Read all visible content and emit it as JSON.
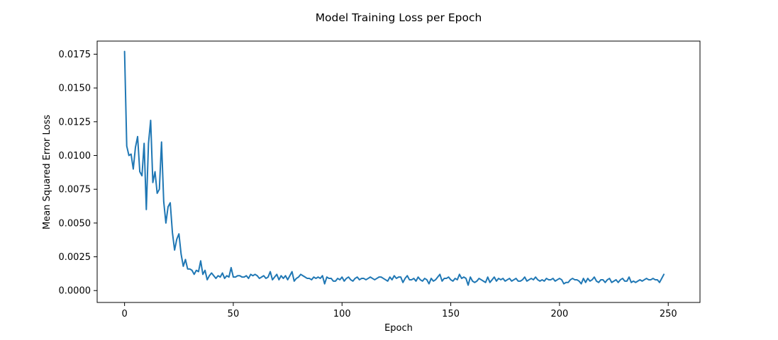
{
  "chart_data": {
    "type": "line",
    "title": "Model Training Loss per Epoch",
    "xlabel": "Epoch",
    "ylabel": "Mean Squared Error Loss",
    "xlim": [
      -12.6,
      264.6
    ],
    "ylim": [
      -0.00088,
      0.01847
    ],
    "x_ticks": [
      0,
      50,
      100,
      150,
      200,
      250
    ],
    "x_tick_labels": [
      "0",
      "50",
      "100",
      "150",
      "200",
      "250"
    ],
    "y_ticks": [
      0.0,
      0.0025,
      0.005,
      0.0075,
      0.01,
      0.0125,
      0.015,
      0.0175
    ],
    "y_tick_labels": [
      "0.0000",
      "0.0025",
      "0.0050",
      "0.0075",
      "0.0100",
      "0.0125",
      "0.0150",
      "0.0175"
    ],
    "grid": false,
    "line_color": "#1f77b4",
    "series": [
      {
        "x_start": 0,
        "values": [
          0.0177,
          0.0107,
          0.01,
          0.0101,
          0.009,
          0.0106,
          0.0114,
          0.0088,
          0.0085,
          0.0109,
          0.006,
          0.0109,
          0.0126,
          0.008,
          0.0088,
          0.0072,
          0.0075,
          0.011,
          0.0066,
          0.005,
          0.0062,
          0.0065,
          0.0043,
          0.003,
          0.0038,
          0.0042,
          0.0027,
          0.0018,
          0.0023,
          0.0016,
          0.0016,
          0.0015,
          0.0012,
          0.0015,
          0.0014,
          0.0022,
          0.0012,
          0.0015,
          0.0008,
          0.0011,
          0.0013,
          0.0011,
          0.0009,
          0.0011,
          0.001,
          0.0013,
          0.0009,
          0.0011,
          0.001,
          0.0017,
          0.001,
          0.001,
          0.0011,
          0.0011,
          0.001,
          0.001,
          0.0011,
          0.0009,
          0.0012,
          0.0011,
          0.0012,
          0.0011,
          0.0009,
          0.001,
          0.0011,
          0.0009,
          0.001,
          0.0014,
          0.0008,
          0.001,
          0.0012,
          0.0008,
          0.0011,
          0.0009,
          0.0011,
          0.0008,
          0.0011,
          0.0014,
          0.0007,
          0.0009,
          0.001,
          0.0012,
          0.0011,
          0.001,
          0.0009,
          0.0009,
          0.0008,
          0.001,
          0.0009,
          0.001,
          0.0009,
          0.0011,
          0.0005,
          0.001,
          0.0009,
          0.0009,
          0.0007,
          0.0007,
          0.0009,
          0.0008,
          0.001,
          0.0007,
          0.0009,
          0.001,
          0.0008,
          0.0007,
          0.0009,
          0.001,
          0.0008,
          0.0009,
          0.0009,
          0.0008,
          0.0009,
          0.001,
          0.0009,
          0.0008,
          0.0009,
          0.001,
          0.001,
          0.0009,
          0.0008,
          0.0007,
          0.001,
          0.0008,
          0.0011,
          0.0009,
          0.001,
          0.001,
          0.0006,
          0.0009,
          0.0011,
          0.0008,
          0.0008,
          0.0009,
          0.0007,
          0.001,
          0.0008,
          0.0007,
          0.0009,
          0.0008,
          0.0005,
          0.0009,
          0.0007,
          0.0008,
          0.001,
          0.0012,
          0.0007,
          0.0009,
          0.0009,
          0.001,
          0.0008,
          0.0007,
          0.0009,
          0.0008,
          0.0012,
          0.0009,
          0.001,
          0.0009,
          0.0004,
          0.001,
          0.0007,
          0.0006,
          0.0007,
          0.0009,
          0.0008,
          0.0007,
          0.0006,
          0.001,
          0.0006,
          0.0008,
          0.001,
          0.0007,
          0.0009,
          0.0008,
          0.0009,
          0.0007,
          0.0008,
          0.0009,
          0.0007,
          0.0008,
          0.0009,
          0.0007,
          0.0007,
          0.0008,
          0.001,
          0.0007,
          0.0008,
          0.0009,
          0.0008,
          0.001,
          0.0008,
          0.0007,
          0.0008,
          0.0007,
          0.0009,
          0.0008,
          0.0008,
          0.0009,
          0.0007,
          0.0008,
          0.0009,
          0.0008,
          0.0005,
          0.0006,
          0.0006,
          0.0008,
          0.0009,
          0.0008,
          0.0008,
          0.0007,
          0.0005,
          0.0009,
          0.0006,
          0.0009,
          0.0007,
          0.0008,
          0.001,
          0.0007,
          0.0006,
          0.0008,
          0.0008,
          0.0006,
          0.0008,
          0.0009,
          0.0006,
          0.0007,
          0.0008,
          0.0006,
          0.0008,
          0.0009,
          0.0007,
          0.0007,
          0.001,
          0.0006,
          0.0007,
          0.0006,
          0.0007,
          0.0008,
          0.0007,
          0.0008,
          0.0009,
          0.0008,
          0.0008,
          0.0009,
          0.0008,
          0.0008,
          0.0006,
          0.0009,
          0.0012
        ]
      }
    ]
  }
}
